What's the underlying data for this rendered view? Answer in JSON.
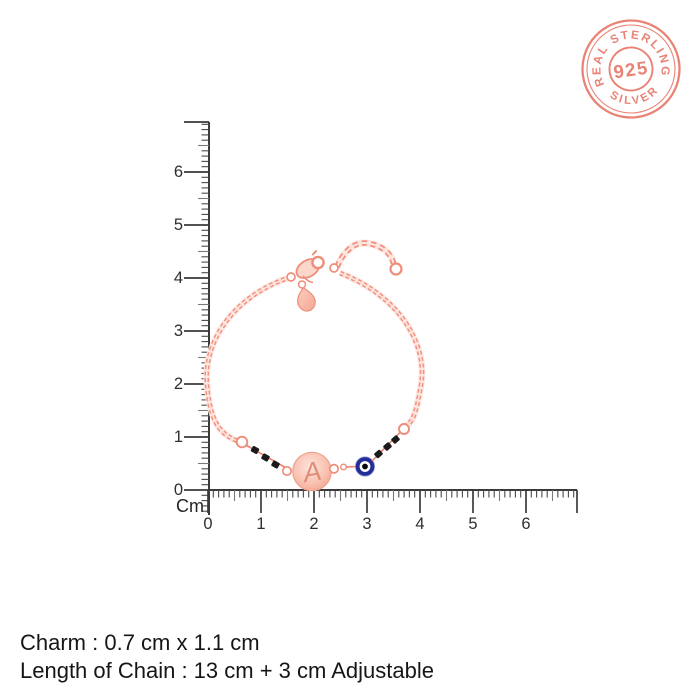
{
  "badge": {
    "arc_top_text": "REAL STERLING",
    "center_text": "925",
    "arc_bottom_text": "SILVER",
    "color": "#e87a6b"
  },
  "ruler": {
    "unit_label": "Cm",
    "vertical_labels": [
      "0",
      "1",
      "2",
      "3",
      "4",
      "5",
      "6"
    ],
    "horizontal_labels": [
      "0",
      "1",
      "2",
      "3",
      "4",
      "5",
      "6"
    ],
    "line_color": "#3a3a3a"
  },
  "bracelet": {
    "charm_letter": "A",
    "chain_color": "#f2917f",
    "bead_color": "#1b1b1b",
    "evil_eye_color": "#222e96"
  },
  "caption": {
    "line1": "Charm : 0.7 cm x 1.1 cm",
    "line2": "Length of Chain : 13 cm + 3 cm Adjustable"
  }
}
